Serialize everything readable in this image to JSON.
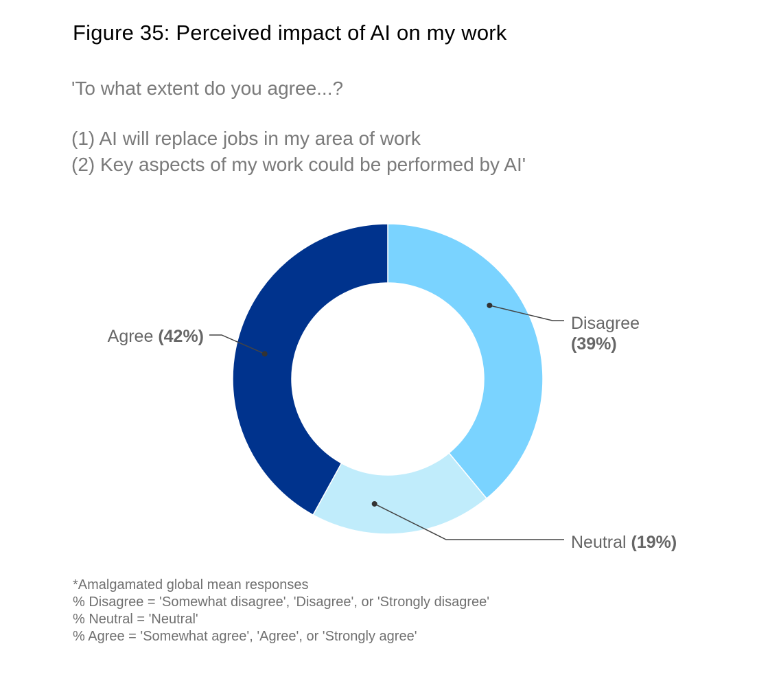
{
  "figure": {
    "title": "Figure 35: Perceived impact of AI on my work",
    "question_intro": "'To what extent do you agree...?",
    "question_1": "(1) AI will replace jobs in my area of work",
    "question_2": "(2) Key aspects of my work could be performed by AI'"
  },
  "chart_data": {
    "type": "pie",
    "donut": true,
    "title": "Figure 35: Perceived impact of AI on my work",
    "slices": [
      {
        "label": "Disagree",
        "value": 39,
        "pct_label": "(39%)",
        "color": "#7ad3ff"
      },
      {
        "label": "Neutral",
        "value": 19,
        "pct_label": "(19%)",
        "color": "#c0ecfb"
      },
      {
        "label": "Agree",
        "value": 42,
        "pct_label": "(42%)",
        "color": "#00338d"
      }
    ],
    "legend": "none"
  },
  "notes": [
    "*Amalgamated global mean responses",
    "% Disagree = 'Somewhat disagree', 'Disagree', or 'Strongly disagree'",
    "% Neutral = 'Neutral'",
    "% Agree = 'Somewhat agree', 'Agree', or 'Strongly agree'"
  ]
}
